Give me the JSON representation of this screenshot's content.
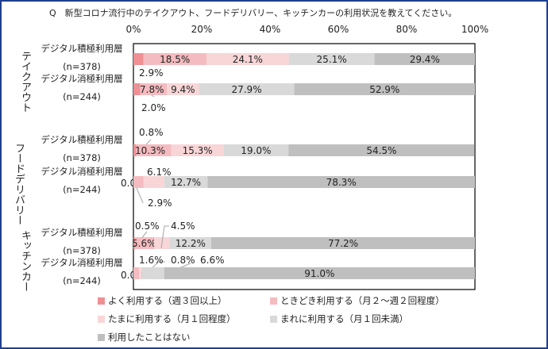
{
  "title": "Q　新型コロナ流行中のテイクアウト、フードデリバリー、キッチンカーの利用状況を教えてください。",
  "chart_data": {
    "type": "bar",
    "orientation": "horizontal",
    "stacked": "100%",
    "xlim": [
      0,
      100
    ],
    "x_ticks": [
      "0%",
      "20%",
      "40%",
      "60%",
      "80%",
      "100%"
    ],
    "grid": false,
    "legend_position": "bottom",
    "groups": [
      {
        "label": "テイクアウト",
        "rows": [
          {
            "label": "デジタル積極利用層",
            "n": "(n=378)",
            "values": [
              2.9,
              18.5,
              24.1,
              25.1,
              29.4
            ]
          },
          {
            "label": "デジタル消極利用層",
            "n": "(n=244)",
            "values": [
              2.0,
              7.8,
              9.4,
              27.9,
              52.9
            ]
          }
        ]
      },
      {
        "label": "フード デリバリー",
        "label_lines": [
          "フード",
          "デリバリー"
        ],
        "rows": [
          {
            "label": "デジタル積極利用層",
            "n": "(n=378)",
            "values": [
              0.8,
              10.3,
              15.3,
              19.0,
              54.5
            ]
          },
          {
            "label": "デジタル消極利用層",
            "n": "(n=244)",
            "values": [
              0.0,
              2.9,
              6.1,
              12.7,
              78.3
            ]
          }
        ]
      },
      {
        "label": "キッチンカー",
        "rows": [
          {
            "label": "デジタル積極利用層",
            "n": "(n=378)",
            "values": [
              0.5,
              5.6,
              4.5,
              12.2,
              77.2
            ]
          },
          {
            "label": "デジタル消極利用層",
            "n": "(n=244)",
            "values": [
              0.0,
              1.6,
              0.8,
              6.6,
              91.0
            ]
          }
        ]
      }
    ],
    "series": [
      {
        "name": "よく利用する（週３回以上）",
        "color": "#ee9094"
      },
      {
        "name": "ときどき利用する（月２～週２回程度）",
        "color": "#f4bcc0"
      },
      {
        "name": "たまに利用する（月１回程度）",
        "color": "#f8d6d7"
      },
      {
        "name": "まれに利用する（月１回未満）",
        "color": "#d9d9d9"
      },
      {
        "name": "利用したことはない",
        "color": "#bfbfbf"
      }
    ]
  }
}
